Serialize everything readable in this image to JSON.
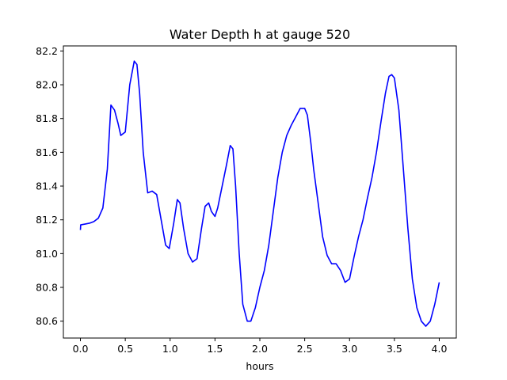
{
  "chart_data": {
    "type": "line",
    "title": "Water Depth h at gauge 520",
    "xlabel": "hours",
    "ylabel": "",
    "xlim": [
      -0.19,
      4.19
    ],
    "ylim": [
      80.5,
      82.23
    ],
    "xticks": [
      "0.0",
      "0.5",
      "1.0",
      "1.5",
      "2.0",
      "2.5",
      "3.0",
      "3.5",
      "4.0"
    ],
    "yticks": [
      "80.6",
      "80.8",
      "81.0",
      "81.2",
      "81.4",
      "81.6",
      "81.8",
      "82.0",
      "82.2"
    ],
    "grid": false,
    "legend": "none",
    "series": [
      {
        "color": "#0000ff",
        "x": [
          0.0,
          0.003,
          0.05,
          0.1,
          0.15,
          0.2,
          0.25,
          0.3,
          0.34,
          0.38,
          0.42,
          0.45,
          0.5,
          0.55,
          0.6,
          0.63,
          0.66,
          0.7,
          0.75,
          0.8,
          0.85,
          0.9,
          0.95,
          0.99,
          1.04,
          1.08,
          1.11,
          1.15,
          1.2,
          1.25,
          1.3,
          1.35,
          1.39,
          1.43,
          1.46,
          1.5,
          1.53,
          1.58,
          1.63,
          1.67,
          1.7,
          1.73,
          1.77,
          1.81,
          1.86,
          1.9,
          1.95,
          2.0,
          2.05,
          2.1,
          2.15,
          2.2,
          2.25,
          2.3,
          2.35,
          2.4,
          2.45,
          2.5,
          2.53,
          2.57,
          2.6,
          2.65,
          2.7,
          2.75,
          2.8,
          2.85,
          2.9,
          2.95,
          3.0,
          3.05,
          3.1,
          3.15,
          3.2,
          3.25,
          3.3,
          3.35,
          3.4,
          3.44,
          3.47,
          3.5,
          3.55,
          3.6,
          3.65,
          3.7,
          3.75,
          3.8,
          3.85,
          3.9,
          3.95,
          4.0
        ],
        "y": [
          81.14,
          81.17,
          81.175,
          81.18,
          81.19,
          81.21,
          81.27,
          81.5,
          81.88,
          81.85,
          81.77,
          81.7,
          81.72,
          82.0,
          82.14,
          82.12,
          81.95,
          81.6,
          81.36,
          81.37,
          81.35,
          81.2,
          81.05,
          81.03,
          81.18,
          81.32,
          81.3,
          81.15,
          81.0,
          80.95,
          80.97,
          81.15,
          81.28,
          81.3,
          81.25,
          81.22,
          81.27,
          81.4,
          81.53,
          81.64,
          81.62,
          81.4,
          81.0,
          80.7,
          80.6,
          80.6,
          80.68,
          80.8,
          80.9,
          81.05,
          81.25,
          81.45,
          81.6,
          81.7,
          81.76,
          81.81,
          81.86,
          81.86,
          81.82,
          81.65,
          81.5,
          81.3,
          81.1,
          80.99,
          80.94,
          80.94,
          80.9,
          80.83,
          80.85,
          80.98,
          81.1,
          81.2,
          81.33,
          81.45,
          81.6,
          81.78,
          81.95,
          82.05,
          82.06,
          82.04,
          81.85,
          81.5,
          81.15,
          80.85,
          80.68,
          80.6,
          80.57,
          80.6,
          80.7,
          80.83
        ]
      }
    ]
  }
}
